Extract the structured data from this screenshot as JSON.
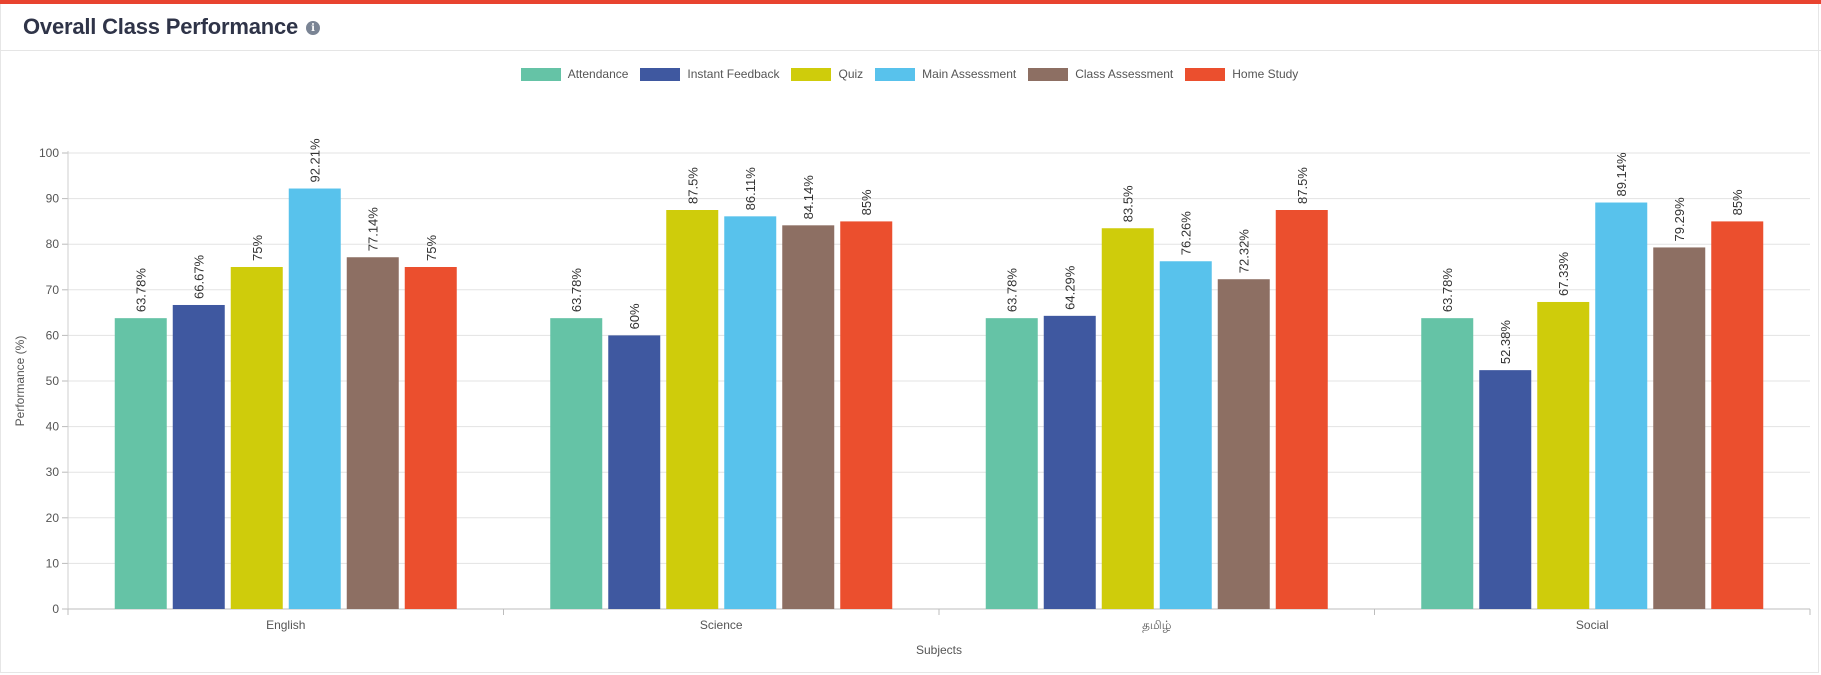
{
  "header": {
    "title": "Overall Class Performance",
    "info_icon": "info-icon"
  },
  "colors": {
    "accent": "#e8432f",
    "series": [
      "#65c3a6",
      "#3f58a0",
      "#cfcc0b",
      "#58c2ec",
      "#8d6f63",
      "#eb4f2e"
    ]
  },
  "chart_data": {
    "type": "bar",
    "categories": [
      "English",
      "Science",
      "தமிழ்",
      "Social"
    ],
    "series": [
      {
        "name": "Attendance",
        "values": [
          63.78,
          63.78,
          63.78,
          63.78
        ],
        "labels": [
          "63.78%",
          "63.78%",
          "63.78%",
          "63.78%"
        ]
      },
      {
        "name": "Instant Feedback",
        "values": [
          66.67,
          60,
          64.29,
          52.38
        ],
        "labels": [
          "66.67%",
          "60%",
          "64.29%",
          "52.38%"
        ]
      },
      {
        "name": "Quiz",
        "values": [
          75,
          87.5,
          83.5,
          67.33
        ],
        "labels": [
          "75%",
          "87.5%",
          "83.5%",
          "67.33%"
        ]
      },
      {
        "name": "Main Assessment",
        "values": [
          92.21,
          86.11,
          76.26,
          89.14
        ],
        "labels": [
          "92.21%",
          "86.11%",
          "76.26%",
          "89.14%"
        ]
      },
      {
        "name": "Class Assessment",
        "values": [
          77.14,
          84.14,
          72.32,
          79.29
        ],
        "labels": [
          "77.14%",
          "84.14%",
          "72.32%",
          "79.29%"
        ]
      },
      {
        "name": "Home Study",
        "values": [
          75,
          85,
          87.5,
          85
        ],
        "labels": [
          "75%",
          "85%",
          "87.5%",
          "85%"
        ]
      }
    ],
    "xlabel": "Subjects",
    "ylabel": "Performance (%)",
    "ylim": [
      0,
      100
    ],
    "yticks": [
      "0",
      "10",
      "20",
      "30",
      "40",
      "50",
      "60",
      "70",
      "80",
      "90",
      "100"
    ],
    "grid": true,
    "legend": "top-center"
  }
}
